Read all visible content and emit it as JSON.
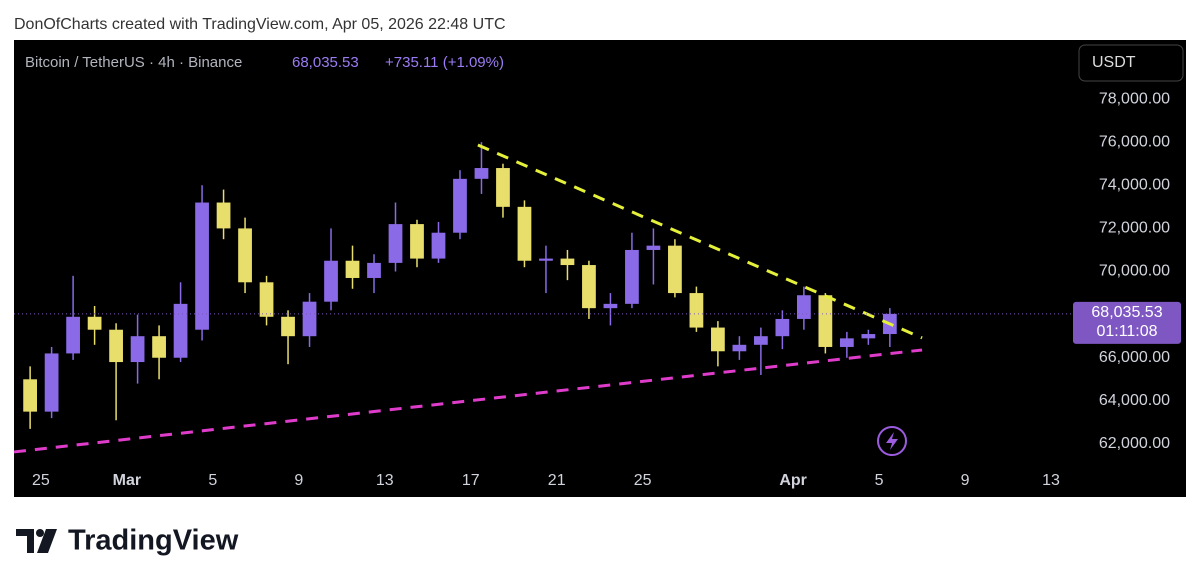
{
  "header": {
    "text": "DonOfCharts created with TradingView.com, Apr 05, 2026 22:48 UTC"
  },
  "chart_data": {
    "type": "candlestick",
    "symbol": "Bitcoin / TetherUS · 4h · Binance",
    "last_price": {
      "value": 68035.53,
      "label": "68,035.53"
    },
    "change": "+735.11 (+1.09%)",
    "countdown": "01:11:08",
    "currency": "USDT",
    "x": [
      "2026-02-24",
      "2026-02-25",
      "2026-02-26",
      "2026-02-27",
      "2026-02-28",
      "2026-03-01",
      "2026-03-02",
      "2026-03-03",
      "2026-03-04",
      "2026-03-05",
      "2026-03-06",
      "2026-03-07",
      "2026-03-08",
      "2026-03-09",
      "2026-03-10",
      "2026-03-11",
      "2026-03-12",
      "2026-03-13",
      "2026-03-14",
      "2026-03-15",
      "2026-03-16",
      "2026-03-17",
      "2026-03-18",
      "2026-03-19",
      "2026-03-20",
      "2026-03-21",
      "2026-03-22",
      "2026-03-23",
      "2026-03-24",
      "2026-03-25",
      "2026-03-26",
      "2026-03-27",
      "2026-03-28",
      "2026-03-29",
      "2026-03-30",
      "2026-03-31",
      "2026-04-01",
      "2026-04-02",
      "2026-04-03",
      "2026-04-04",
      "2026-04-05"
    ],
    "open": [
      65000,
      63500,
      66200,
      67900,
      67300,
      65800,
      67000,
      66000,
      67300,
      73200,
      72000,
      69500,
      67900,
      67000,
      68600,
      70500,
      69700,
      70400,
      72200,
      70600,
      71800,
      74300,
      74800,
      73000,
      70500,
      70600,
      70300,
      68300,
      68500,
      71000,
      71200,
      69000,
      67400,
      66300,
      66600,
      67000,
      67800,
      68900,
      66500,
      66900,
      67100
    ],
    "high": [
      65600,
      66500,
      69800,
      68400,
      67600,
      68000,
      67500,
      69500,
      74000,
      73800,
      72500,
      69800,
      68200,
      69000,
      72000,
      71200,
      70800,
      73200,
      72400,
      72300,
      74700,
      76000,
      75000,
      73300,
      71200,
      71000,
      70500,
      69000,
      71800,
      72000,
      71500,
      69300,
      67700,
      67000,
      67400,
      68200,
      69300,
      69000,
      67200,
      67300,
      68300
    ],
    "low": [
      62700,
      63200,
      65900,
      66600,
      63100,
      64800,
      65000,
      65800,
      66800,
      71500,
      69000,
      67500,
      65700,
      66500,
      68200,
      69200,
      69000,
      70000,
      70200,
      70400,
      71500,
      73600,
      72500,
      70200,
      69000,
      69600,
      67800,
      67500,
      68300,
      69400,
      68800,
      67200,
      65600,
      65900,
      65200,
      66400,
      67300,
      66200,
      66000,
      66600,
      66500
    ],
    "close": [
      63500,
      66200,
      67900,
      67300,
      65800,
      67000,
      66000,
      68500,
      73200,
      72000,
      69500,
      67900,
      67000,
      68600,
      70500,
      69700,
      70400,
      72200,
      70600,
      71800,
      74300,
      74800,
      73000,
      70500,
      70600,
      70300,
      68300,
      68500,
      71000,
      71200,
      69000,
      67400,
      66300,
      66600,
      67000,
      67800,
      68900,
      66500,
      66900,
      67100,
      68035.53
    ],
    "up_color": "#8a6ae6",
    "down_color": "#e8de6c",
    "xlim": [
      "2026-02-23T18:00",
      "2026-04-13T10:00"
    ],
    "xticks": [
      {
        "value": "2026-02-25",
        "label": "25"
      },
      {
        "value": "2026-03-01",
        "label": "Mar"
      },
      {
        "value": "2026-03-05",
        "label": "5"
      },
      {
        "value": "2026-03-09",
        "label": "9"
      },
      {
        "value": "2026-03-13",
        "label": "13"
      },
      {
        "value": "2026-03-17",
        "label": "17"
      },
      {
        "value": "2026-03-21",
        "label": "21"
      },
      {
        "value": "2026-03-25",
        "label": "25"
      },
      {
        "value": "2026-04-01",
        "label": "Apr"
      },
      {
        "value": "2026-04-05",
        "label": "5"
      },
      {
        "value": "2026-04-09",
        "label": "9"
      },
      {
        "value": "2026-04-13",
        "label": "13"
      }
    ],
    "ylim": [
      59540,
      80740
    ],
    "yticks": [
      {
        "value": 62000,
        "label": "62,000.00"
      },
      {
        "value": 64000,
        "label": "64,000.00"
      },
      {
        "value": 66000,
        "label": "66,000.00"
      },
      {
        "value": 70000,
        "label": "70,000.00"
      },
      {
        "value": 72000,
        "label": "72,000.00"
      },
      {
        "value": 74000,
        "label": "74,000.00"
      },
      {
        "value": 76000,
        "label": "76,000.00"
      },
      {
        "value": 78000,
        "label": "78,000.00"
      }
    ],
    "trendlines": [
      {
        "color": "#e4f03a",
        "x": [
          "2026-03-17T08:00",
          "2026-04-07T00:00"
        ],
        "y": [
          75870,
          66920
        ]
      },
      {
        "color": "#e03ccc",
        "x": [
          "2026-02-23T18:00",
          "2026-04-07T00:00"
        ],
        "y": [
          61630,
          66360
        ]
      }
    ]
  },
  "footer": {
    "logo": "TradingView"
  }
}
